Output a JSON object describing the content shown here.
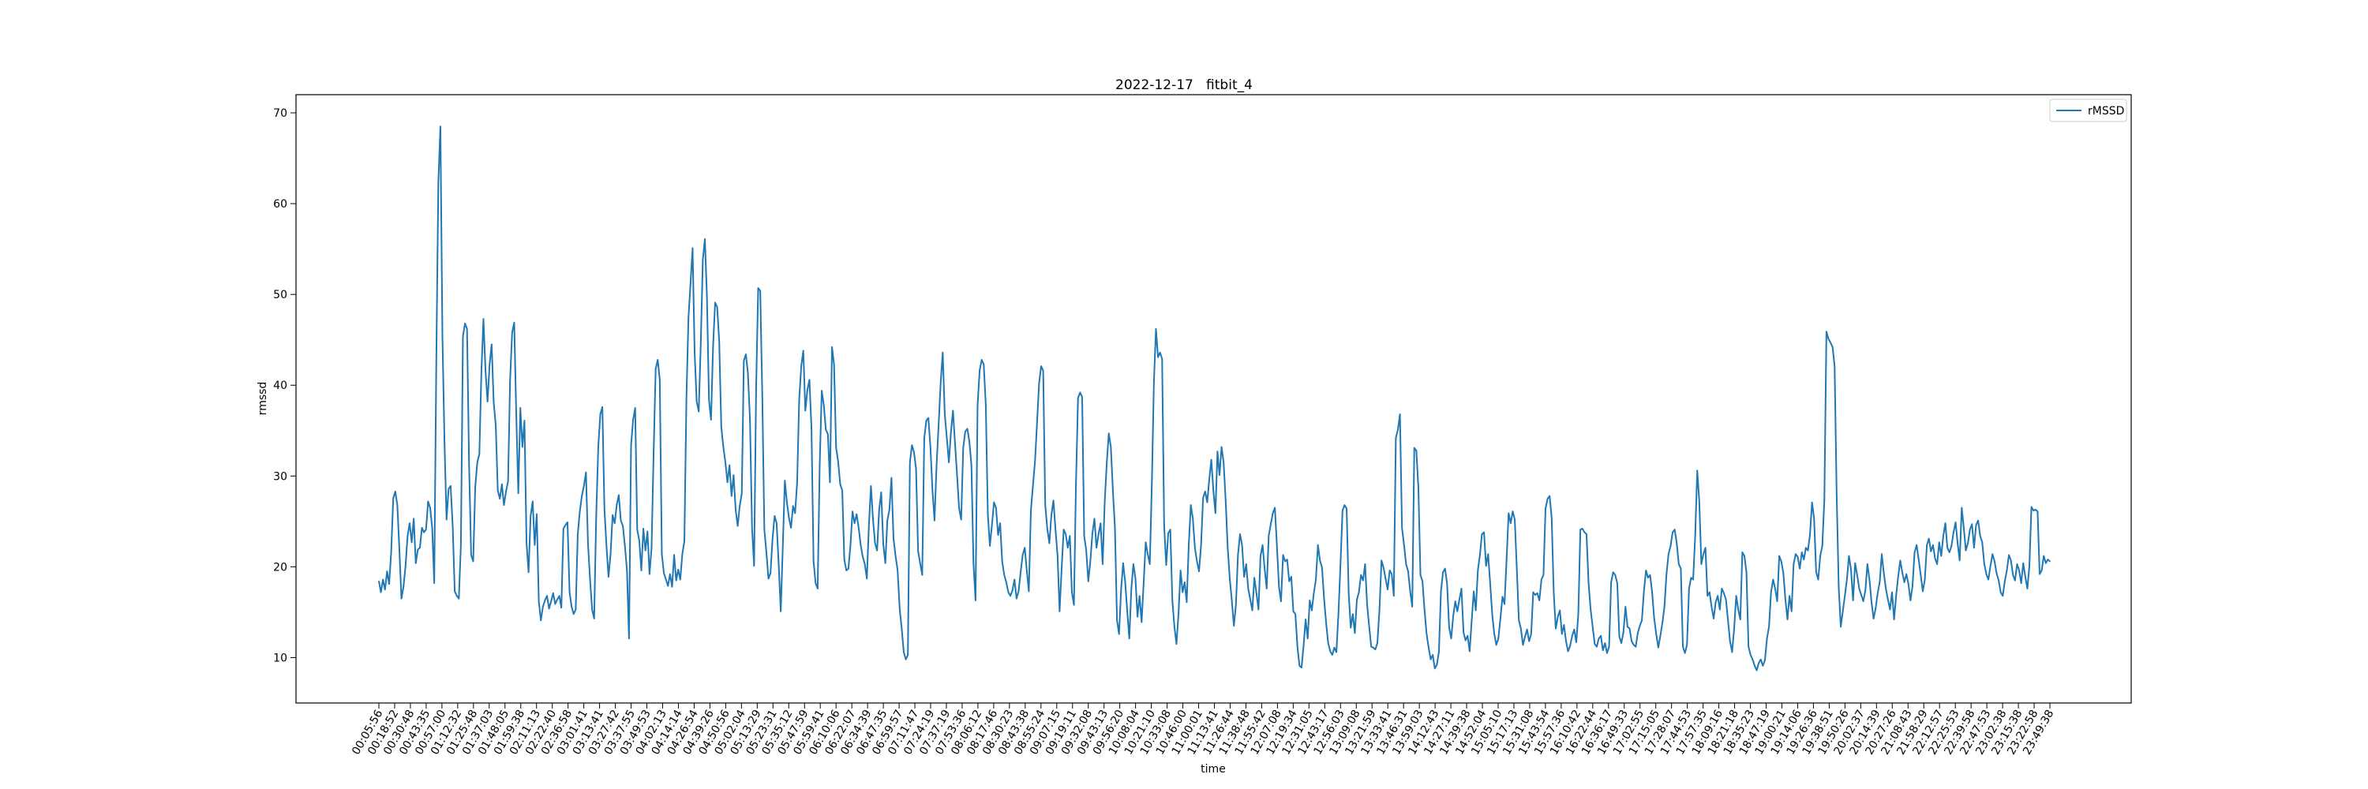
{
  "chart_data": {
    "type": "line",
    "title": "2022-12-17   fitbit_4",
    "xlabel": "time",
    "ylabel": "rmssd",
    "ylim": [
      5,
      72
    ],
    "yticks": [
      10,
      20,
      30,
      40,
      50,
      60,
      70
    ],
    "legend": {
      "placement": "top-right",
      "entries": [
        "rMSSD"
      ]
    },
    "line_color": "#1f77b4",
    "xticks": [
      "00:05:56",
      "00:18:52",
      "00:30:48",
      "00:43:35",
      "00:57:00",
      "01:12:32",
      "01:25:48",
      "01:37:03",
      "01:48:05",
      "01:59:38",
      "02:11:13",
      "02:22:40",
      "02:36:58",
      "03:01:41",
      "03:13:41",
      "03:27:42",
      "03:37:55",
      "03:49:53",
      "04:02:13",
      "04:14:14",
      "04:26:54",
      "04:39:26",
      "04:50:56",
      "05:02:04",
      "05:13:29",
      "05:23:31",
      "05:35:12",
      "05:47:59",
      "05:59:41",
      "06:10:06",
      "06:22:07",
      "06:34:39",
      "06:47:35",
      "06:59:57",
      "07:11:47",
      "07:24:19",
      "07:37:19",
      "07:53:36",
      "08:06:12",
      "08:17:46",
      "08:30:23",
      "08:43:38",
      "08:55:24",
      "09:07:15",
      "09:19:11",
      "09:32:08",
      "09:43:13",
      "09:56:20",
      "10:08:04",
      "10:21:10",
      "10:33:08",
      "10:46:00",
      "11:00:01",
      "11:13:41",
      "11:26:44",
      "11:38:48",
      "11:55:42",
      "12:07:08",
      "12:19:34",
      "12:31:05",
      "12:43:17",
      "12:56:03",
      "13:09:08",
      "13:21:59",
      "13:33:41",
      "13:46:31",
      "13:59:03",
      "14:12:43",
      "14:27:11",
      "14:39:38",
      "14:52:04",
      "15:05:10",
      "15:17:13",
      "15:31:08",
      "15:43:54",
      "15:57:36",
      "16:10:42",
      "16:22:44",
      "16:36:17",
      "16:49:33",
      "17:02:55",
      "17:15:05",
      "17:28:07",
      "17:44:53",
      "17:57:35",
      "18:09:16",
      "18:21:18",
      "18:35:23",
      "18:47:19",
      "19:00:21",
      "19:14:06",
      "19:26:36",
      "19:38:51",
      "19:50:26",
      "20:02:37",
      "20:14:39",
      "20:27:26",
      "21:08:43",
      "21:58:29",
      "22:12:57",
      "22:25:53",
      "22:39:58",
      "22:47:53",
      "23:02:38",
      "23:15:38",
      "23:22:58",
      "23:49:38"
    ],
    "series": [
      {
        "name": "rMSSD",
        "values": [
          18.4,
          17.2,
          18.6,
          17.5,
          19.5,
          18.1,
          21.6,
          27.5,
          28.3,
          26.8,
          21.9,
          16.5,
          17.8,
          20.1,
          23.4,
          24.8,
          22.7,
          25.3,
          20.4,
          21.9,
          22.1,
          24.3,
          23.8,
          24.1,
          27.2,
          26.5,
          24.3,
          18.2,
          42.5,
          62.3,
          68.5,
          45.3,
          33.8,
          25.2,
          28.6,
          28.9,
          24.5,
          17.3,
          16.8,
          16.5,
          22.4,
          45.4,
          46.8,
          46.2,
          31.2,
          21.3,
          20.6,
          28.8,
          31.5,
          32.4,
          41.5,
          47.3,
          41.6,
          38.2,
          42.3,
          44.5,
          38.1,
          35.6,
          28.4,
          27.5,
          29.1,
          26.8,
          28.3,
          29.4,
          40.6,
          45.8,
          46.9,
          36.8,
          28.1,
          37.5,
          33.2,
          36.1,
          22.7,
          19.4,
          25.6,
          27.2,
          22.4,
          25.8,
          16.2,
          14.1,
          15.6,
          16.3,
          16.8,
          15.4,
          16.2,
          17.1,
          15.9,
          16.4,
          16.8,
          15.5,
          24.2,
          24.6,
          24.9,
          17.2,
          15.6,
          14.8,
          15.3,
          23.6,
          26.1,
          27.8,
          28.9,
          30.4,
          22.5,
          18.6,
          15.3,
          14.3,
          25.6,
          33.2,
          36.8,
          37.6,
          26.4,
          22.3,
          18.9,
          21.4,
          25.7,
          24.8,
          26.8,
          27.9,
          25.1,
          24.5,
          22.3,
          19.6,
          12.1,
          33.4,
          36.2,
          37.5,
          24.1,
          22.9,
          19.6,
          24.2,
          21.8,
          23.9,
          19.2,
          22.1,
          32.6,
          41.8,
          42.8,
          40.6,
          21.4,
          19.3,
          18.6,
          17.9,
          19.2,
          17.8,
          21.3,
          18.5,
          19.7,
          18.6,
          21.4,
          22.8,
          38.6,
          47.5,
          51.2,
          55.1,
          43.6,
          38.2,
          37.1,
          44.6,
          53.8,
          56.1,
          49.8,
          38.4,
          36.2,
          44.3,
          49.1,
          48.6,
          44.8,
          35.4,
          33.2,
          31.5,
          29.3,
          31.2,
          27.8,
          30.1,
          26.3,
          24.5,
          26.7,
          28.1,
          42.7,
          43.4,
          41.3,
          36.1,
          24.3,
          20.1,
          39.8,
          50.7,
          50.4,
          38.9,
          24.1,
          21.6,
          18.7,
          19.3,
          23.1,
          25.6,
          24.8,
          20.3,
          15.1,
          22.2,
          29.5,
          27.1,
          25.4,
          24.3,
          26.7,
          25.9,
          29.3,
          38.4,
          42.1,
          43.8,
          37.2,
          39.5,
          40.6,
          35.2,
          20.6,
          18.2,
          17.6,
          31.2,
          39.4,
          37.8,
          35.1,
          34.6,
          29.3,
          44.2,
          42.3,
          33.1,
          31.6,
          29.1,
          28.4,
          20.8,
          19.6,
          19.8,
          22.4,
          26.1,
          24.8,
          25.8,
          24.3,
          22.4,
          21.1,
          20.3,
          18.7,
          24.6,
          28.9,
          25.2,
          22.6,
          21.8,
          26.3,
          28.2,
          22.5,
          20.4,
          25.1,
          26.3,
          29.8,
          23.1,
          21.2,
          19.6,
          15.4,
          13.2,
          10.6,
          9.8,
          10.3,
          31.5,
          33.4,
          32.6,
          30.8,
          21.7,
          20.4,
          19.1,
          34.2,
          36.1,
          36.4,
          33.2,
          28.4,
          25.1,
          31.2,
          35.6,
          40.3,
          43.6,
          36.8,
          34.2,
          31.5,
          34.8,
          37.2,
          33.6,
          30.1,
          26.4,
          25.2,
          33.1,
          34.9,
          35.2,
          33.8,
          31.2,
          20.4,
          16.3,
          37.8,
          41.6,
          42.8,
          42.3,
          37.9,
          25.8,
          22.3,
          24.6,
          27.1,
          26.5,
          23.5,
          24.8,
          20.6,
          19.1,
          18.3,
          17.2,
          16.8,
          17.4,
          18.6,
          16.5,
          17.3,
          19.4,
          21.3,
          22.1,
          19.6,
          17.3,
          26.2,
          28.9,
          31.6,
          35.8,
          40.2,
          42.1,
          41.6,
          26.8,
          24.2,
          22.6,
          25.7,
          27.3,
          24.1,
          21.3,
          15.1,
          19.8,
          24.1,
          23.6,
          22.1,
          23.4,
          17.2,
          15.8,
          29.3,
          38.6,
          39.2,
          38.7,
          23.4,
          21.8,
          18.4,
          20.6,
          23.7,
          25.3,
          22.1,
          23.6,
          24.8,
          20.3,
          27.1,
          31.4,
          34.7,
          33.2,
          28.4,
          24.3,
          14.1,
          12.6,
          17.5,
          20.4,
          18.3,
          15.1,
          12.1,
          17.6,
          20.3,
          18.7,
          14.5,
          16.8,
          13.9,
          18.2,
          22.7,
          21.4,
          20.3,
          29.1,
          40.3,
          46.2,
          43.1,
          43.6,
          42.9,
          24.6,
          20.2,
          23.7,
          24.1,
          16.3,
          13.4,
          11.5,
          14.8,
          19.6,
          17.2,
          18.3,
          16.1,
          22.4,
          26.8,
          25.3,
          22.1,
          20.6,
          19.5,
          22.4,
          27.6,
          28.3,
          27.1,
          29.6,
          31.8,
          28.4,
          25.9,
          32.7,
          30.1,
          33.2,
          31.5,
          27.3,
          22.1,
          18.7,
          16.3,
          13.5,
          15.8,
          21.3,
          23.6,
          22.4,
          18.9,
          20.3,
          17.6,
          16.4,
          15.2,
          18.8,
          17.1,
          15.3,
          21.2,
          22.4,
          19.8,
          17.6,
          23.4,
          24.7,
          25.9,
          26.5,
          22.3,
          17.8,
          16.2,
          21.3,
          20.6,
          20.8,
          18.4,
          18.9,
          15.1,
          14.8,
          11.2,
          9.1,
          8.9,
          11.3,
          14.2,
          12.1,
          16.3,
          15.2,
          17.1,
          18.6,
          22.4,
          20.7,
          19.9,
          16.5,
          13.8,
          11.6,
          10.7,
          10.3,
          11.1,
          10.6,
          14.8,
          20.3,
          26.2,
          26.8,
          26.4,
          17.1,
          13.3,
          14.8,
          12.7,
          16.4,
          17.2,
          19.1,
          18.5,
          20.3,
          15.8,
          13.4,
          11.2,
          11.1,
          10.9,
          11.6,
          15.2,
          20.7,
          19.9,
          18.7,
          17.5,
          19.6,
          19.2,
          16.8,
          34.2,
          35.1,
          36.8,
          24.3,
          22.4,
          20.3,
          19.5,
          17.3,
          15.6,
          33.1,
          32.8,
          28.7,
          19.1,
          18.4,
          15.2,
          12.6,
          11.1,
          9.8,
          10.3,
          8.8,
          9.2,
          10.6,
          17.3,
          19.4,
          19.8,
          18.1,
          13.3,
          12.1,
          14.6,
          16.2,
          15.1,
          16.4,
          17.6,
          12.8,
          11.9,
          12.4,
          10.7,
          14.1,
          17.3,
          15.2,
          19.6,
          21.3,
          23.6,
          23.8,
          20.1,
          21.4,
          18.2,
          14.8,
          12.6,
          11.4,
          12.1,
          14.3,
          16.7,
          15.9,
          20.8,
          25.9,
          24.8,
          26.1,
          25.2,
          19.8,
          14.1,
          13.2,
          11.4,
          12.3,
          13.1,
          11.8,
          12.6,
          17.2,
          16.9,
          17.1,
          16.3,
          18.6,
          19.1,
          26.4,
          27.5,
          27.8,
          25.4,
          17.2,
          13.2,
          14.5,
          15.2,
          12.6,
          13.6,
          11.8,
          10.7,
          11.3,
          12.4,
          13.1,
          11.7,
          14.8,
          24.1,
          24.2,
          23.8,
          23.6,
          18.2,
          15.3,
          13.4,
          11.5,
          11.2,
          12.1,
          12.4,
          10.8,
          11.6,
          10.5,
          11.2,
          18.3,
          19.4,
          19.1,
          18.2,
          12.3,
          11.6,
          12.8,
          15.6,
          13.4,
          13.2,
          11.8,
          11.4,
          11.2,
          12.7,
          13.5,
          14.1,
          17.3,
          19.6,
          18.8,
          19.1,
          17.2,
          14.3,
          12.6,
          11.1,
          12.4,
          13.8,
          15.6,
          19.2,
          21.4,
          22.3,
          23.8,
          24.1,
          22.6,
          20.3,
          19.8,
          11.2,
          10.5,
          11.4,
          17.6,
          18.8,
          18.6,
          23.4,
          30.6,
          27.2,
          20.3,
          21.4,
          22.1,
          16.8,
          17.2,
          15.6,
          14.3,
          16.1,
          16.8,
          15.3,
          17.6,
          17.1,
          16.4,
          14.1,
          11.8,
          10.6,
          13.2,
          16.8,
          15.3,
          14.2,
          21.6,
          21.2,
          19.4,
          11.2,
          10.3,
          9.8,
          9.1,
          8.6,
          9.4,
          9.8,
          9.1,
          9.7,
          12.1,
          13.4,
          17.2,
          18.6,
          17.6,
          16.2,
          21.2,
          20.6,
          19.3,
          16.4,
          14.2,
          16.8,
          15.1,
          20.3,
          21.4,
          21.1,
          19.8,
          21.6,
          20.8,
          22.1,
          21.8,
          23.6,
          27.1,
          25.3,
          19.4,
          18.6,
          21.2,
          22.3,
          27.4,
          45.9,
          45.1,
          44.7,
          44.2,
          42.1,
          27.9,
          17.8,
          13.4,
          15.1,
          16.8,
          18.6,
          21.2,
          19.7,
          16.3,
          20.4,
          19.1,
          17.6,
          16.9,
          16.2,
          17.4,
          20.3,
          18.6,
          16.1,
          14.3,
          15.4,
          17.1,
          18.3,
          21.4,
          19.3,
          17.6,
          16.4,
          15.3,
          17.2,
          14.2,
          16.8,
          18.9,
          20.7,
          19.4,
          18.3,
          19.2,
          18.1,
          16.3,
          17.9,
          21.6,
          22.4,
          20.8,
          19.1,
          17.3,
          18.6,
          22.4,
          23.1,
          21.7,
          22.4,
          20.9,
          20.3,
          22.7,
          21.2,
          23.4,
          24.8,
          22.1,
          21.6,
          22.3,
          23.8,
          24.9,
          22.6,
          20.7,
          26.5,
          24.3,
          21.8,
          22.6,
          24.1,
          24.7,
          22.1,
          24.6,
          25.1,
          23.4,
          22.7,
          20.3,
          19.2,
          18.6,
          20.1,
          21.4,
          20.6,
          19.3,
          18.5,
          17.2,
          16.8,
          18.4,
          19.6,
          21.3,
          20.7,
          19.1,
          18.5,
          20.3,
          19.6,
          18.2,
          20.4,
          18.9,
          17.6,
          20.1,
          26.6,
          26.2,
          26.3,
          26.1,
          19.2,
          19.6,
          21.2,
          20.4,
          20.8,
          20.6
        ]
      }
    ]
  }
}
